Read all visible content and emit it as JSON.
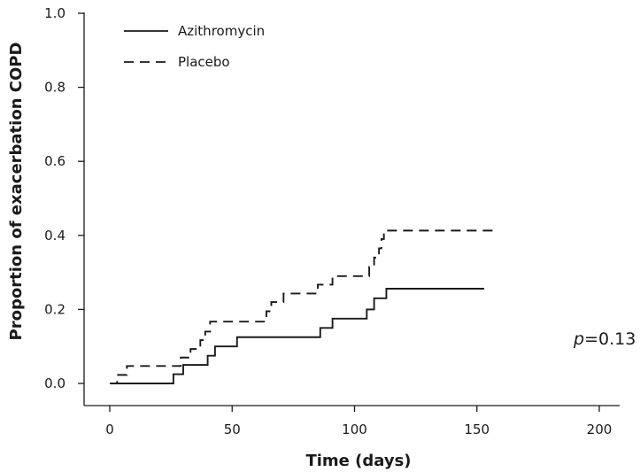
{
  "chart_data": {
    "type": "line",
    "step": true,
    "xlabel": "Time (days)",
    "ylabel": "Proportion of exacerbation COPD",
    "xlim": [
      0,
      200
    ],
    "ylim": [
      0,
      1
    ],
    "xticks": [
      0,
      50,
      100,
      150,
      200
    ],
    "yticks": [
      0.0,
      0.2,
      0.4,
      0.6,
      0.8,
      1.0
    ],
    "ytick_labels": [
      "0.0",
      "0.2",
      "0.4",
      "0.6",
      "0.8",
      "1.0"
    ],
    "xtick_labels": [
      "0",
      "50",
      "100",
      "150",
      "200"
    ],
    "grid": false,
    "legend_position": "top-left",
    "annotation": {
      "italic": "p",
      "rest": "=0.13"
    },
    "series": [
      {
        "name": "Azithromycin",
        "style": "solid",
        "color": "#1a1a1a",
        "x": [
          0,
          26,
          30,
          40,
          43,
          52,
          86,
          91,
          105,
          108,
          113,
          153
        ],
        "y": [
          0.0,
          0.025,
          0.05,
          0.075,
          0.1,
          0.125,
          0.15,
          0.175,
          0.2,
          0.23,
          0.256,
          0.256
        ]
      },
      {
        "name": "Placebo",
        "style": "dashed",
        "color": "#1a1a1a",
        "x": [
          0,
          3,
          7,
          29,
          33,
          37,
          39,
          41,
          64,
          66,
          71,
          85,
          91,
          106,
          108,
          110,
          111,
          112,
          157
        ],
        "y": [
          0.0,
          0.023,
          0.047,
          0.07,
          0.093,
          0.117,
          0.14,
          0.167,
          0.195,
          0.22,
          0.243,
          0.267,
          0.29,
          0.315,
          0.34,
          0.365,
          0.39,
          0.413,
          0.413
        ]
      }
    ]
  }
}
